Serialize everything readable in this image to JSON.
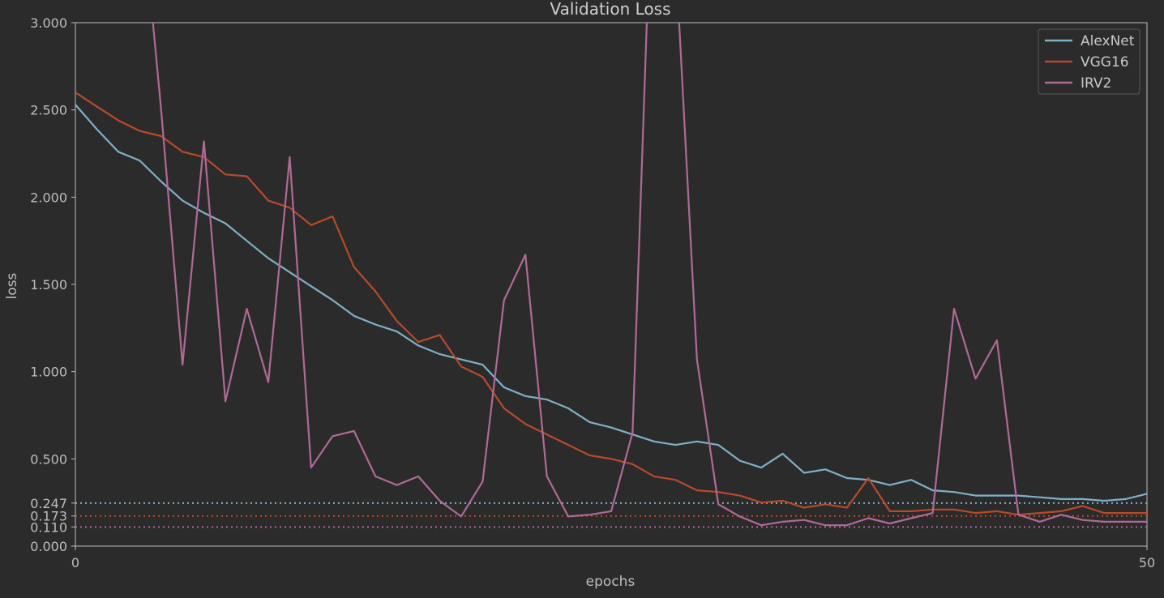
{
  "chart_data": {
    "type": "line",
    "title": "Validation Loss",
    "xlabel": "epochs",
    "ylabel": "loss",
    "xlim": [
      0,
      50
    ],
    "ylim": [
      0,
      3
    ],
    "x_ticks": [
      "0",
      "50"
    ],
    "y_ticks": [
      {
        "value": 0.0,
        "label": "0.000"
      },
      {
        "value": 0.11,
        "label": "0.110"
      },
      {
        "value": 0.173,
        "label": "0.173"
      },
      {
        "value": 0.247,
        "label": "0.247"
      },
      {
        "value": 0.5,
        "label": "0.500"
      },
      {
        "value": 1.0,
        "label": "1.000"
      },
      {
        "value": 1.5,
        "label": "1.500"
      },
      {
        "value": 2.0,
        "label": "2.000"
      },
      {
        "value": 2.5,
        "label": "2.500"
      },
      {
        "value": 3.0,
        "label": "3.000"
      }
    ],
    "grid": false,
    "legend_position": "top-right",
    "series": [
      {
        "name": "AlexNet",
        "color": "#7fb0c8",
        "min_line": 0.247,
        "x": [
          0,
          1,
          2,
          3,
          4,
          5,
          6,
          7,
          8,
          9,
          10,
          11,
          12,
          13,
          14,
          15,
          16,
          17,
          18,
          19,
          20,
          21,
          22,
          23,
          24,
          25,
          26,
          27,
          28,
          29,
          30,
          31,
          32,
          33,
          34,
          35,
          36,
          37,
          38,
          39,
          40,
          41,
          42,
          43,
          44,
          45,
          46,
          47,
          48,
          49,
          50
        ],
        "values": [
          2.53,
          2.39,
          2.26,
          2.21,
          2.09,
          1.98,
          1.91,
          1.85,
          1.75,
          1.65,
          1.57,
          1.49,
          1.41,
          1.32,
          1.27,
          1.23,
          1.15,
          1.1,
          1.07,
          1.04,
          0.91,
          0.86,
          0.84,
          0.79,
          0.71,
          0.68,
          0.64,
          0.6,
          0.58,
          0.6,
          0.58,
          0.49,
          0.45,
          0.53,
          0.42,
          0.44,
          0.39,
          0.38,
          0.35,
          0.38,
          0.32,
          0.31,
          0.29,
          0.29,
          0.29,
          0.28,
          0.27,
          0.27,
          0.26,
          0.27,
          0.3
        ]
      },
      {
        "name": "VGG16",
        "color": "#b84a2a",
        "min_line": 0.173,
        "x": [
          0,
          1,
          2,
          3,
          4,
          5,
          6,
          7,
          8,
          9,
          10,
          11,
          12,
          13,
          14,
          15,
          16,
          17,
          18,
          19,
          20,
          21,
          22,
          23,
          24,
          25,
          26,
          27,
          28,
          29,
          30,
          31,
          32,
          33,
          34,
          35,
          36,
          37,
          38,
          39,
          40,
          41,
          42,
          43,
          44,
          45,
          46,
          47,
          48,
          49,
          50
        ],
        "values": [
          2.6,
          2.52,
          2.44,
          2.38,
          2.35,
          2.26,
          2.23,
          2.13,
          2.12,
          1.98,
          1.94,
          1.84,
          1.89,
          1.6,
          1.46,
          1.29,
          1.17,
          1.21,
          1.03,
          0.97,
          0.79,
          0.7,
          0.64,
          0.58,
          0.52,
          0.5,
          0.47,
          0.4,
          0.38,
          0.32,
          0.31,
          0.29,
          0.25,
          0.26,
          0.22,
          0.24,
          0.22,
          0.39,
          0.2,
          0.2,
          0.21,
          0.21,
          0.19,
          0.2,
          0.18,
          0.19,
          0.2,
          0.23,
          0.19,
          0.19,
          0.19
        ]
      },
      {
        "name": "IRV2",
        "color": "#b06a98",
        "min_line": 0.11,
        "x": [
          0,
          1,
          2,
          3,
          4,
          5,
          6,
          7,
          8,
          9,
          10,
          11,
          12,
          13,
          14,
          15,
          16,
          17,
          18,
          19,
          20,
          21,
          22,
          23,
          24,
          25,
          26,
          27,
          28,
          29,
          30,
          31,
          32,
          33,
          34,
          35,
          36,
          37,
          38,
          39,
          40,
          41,
          42,
          43,
          44,
          45,
          46,
          47,
          48,
          49,
          50
        ],
        "values": [
          null,
          null,
          null,
          null,
          2.5,
          1.04,
          2.32,
          0.83,
          1.36,
          0.94,
          2.23,
          0.45,
          0.63,
          0.66,
          0.4,
          0.35,
          0.4,
          0.26,
          0.17,
          0.37,
          1.41,
          1.67,
          0.4,
          0.17,
          0.18,
          0.2,
          0.65,
          4.2,
          3.4,
          1.07,
          0.24,
          0.17,
          0.12,
          0.14,
          0.15,
          0.12,
          0.12,
          0.16,
          0.13,
          0.16,
          0.19,
          1.36,
          0.96,
          1.18,
          0.18,
          0.14,
          0.18,
          0.15,
          0.14,
          0.14,
          0.14
        ]
      }
    ]
  }
}
